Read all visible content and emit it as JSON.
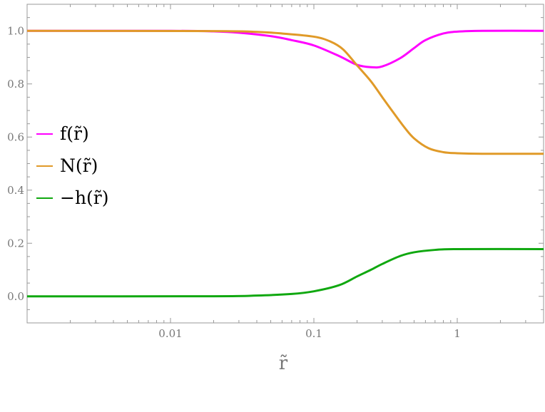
{
  "chart_data": {
    "type": "line",
    "title": "",
    "xlabel": "r̃",
    "ylabel": "",
    "xscale": "log",
    "xlim": [
      0.001,
      4
    ],
    "ylim": [
      -0.1,
      1.1
    ],
    "grid": false,
    "legend_placement": "left",
    "x_ticks": [
      {
        "value": 0.01,
        "label": "0.01"
      },
      {
        "value": 0.1,
        "label": "0.1"
      },
      {
        "value": 1,
        "label": "1"
      }
    ],
    "y_ticks": [
      {
        "value": 0.0,
        "label": "0.0"
      },
      {
        "value": 0.2,
        "label": "0.2"
      },
      {
        "value": 0.4,
        "label": "0.4"
      },
      {
        "value": 0.6,
        "label": "0.6"
      },
      {
        "value": 0.8,
        "label": "0.8"
      },
      {
        "value": 1.0,
        "label": "1.0"
      }
    ],
    "series": [
      {
        "name": "f(r̃)",
        "color": "#ff00ff",
        "points": [
          [
            0.001,
            1
          ],
          [
            0.01,
            1
          ],
          [
            0.02,
            0.998
          ],
          [
            0.03,
            0.993
          ],
          [
            0.05,
            0.98
          ],
          [
            0.07,
            0.965
          ],
          [
            0.1,
            0.945
          ],
          [
            0.15,
            0.905
          ],
          [
            0.2,
            0.872
          ],
          [
            0.25,
            0.863
          ],
          [
            0.3,
            0.866
          ],
          [
            0.4,
            0.897
          ],
          [
            0.5,
            0.935
          ],
          [
            0.6,
            0.965
          ],
          [
            0.8,
            0.99
          ],
          [
            1,
            0.997
          ],
          [
            1.5,
            1
          ],
          [
            4,
            1
          ]
        ]
      },
      {
        "name": "N(r̃)",
        "color": "#e09a28",
        "points": [
          [
            0.001,
            1
          ],
          [
            0.02,
            0.999
          ],
          [
            0.04,
            0.996
          ],
          [
            0.06,
            0.99
          ],
          [
            0.1,
            0.978
          ],
          [
            0.13,
            0.96
          ],
          [
            0.16,
            0.93
          ],
          [
            0.2,
            0.87
          ],
          [
            0.25,
            0.81
          ],
          [
            0.3,
            0.75
          ],
          [
            0.35,
            0.7
          ],
          [
            0.43,
            0.635
          ],
          [
            0.5,
            0.595
          ],
          [
            0.63,
            0.558
          ],
          [
            0.8,
            0.543
          ],
          [
            1,
            0.539
          ],
          [
            1.5,
            0.537
          ],
          [
            4,
            0.537
          ]
        ]
      },
      {
        "name": "−h(r̃)",
        "color": "#10a810",
        "points": [
          [
            0.001,
            0
          ],
          [
            0.02,
            0.0005
          ],
          [
            0.04,
            0.003
          ],
          [
            0.07,
            0.009
          ],
          [
            0.1,
            0.019
          ],
          [
            0.15,
            0.042
          ],
          [
            0.2,
            0.075
          ],
          [
            0.25,
            0.1
          ],
          [
            0.3,
            0.122
          ],
          [
            0.4,
            0.152
          ],
          [
            0.5,
            0.166
          ],
          [
            0.7,
            0.175
          ],
          [
            1,
            0.178
          ],
          [
            4,
            0.178
          ]
        ]
      }
    ]
  }
}
